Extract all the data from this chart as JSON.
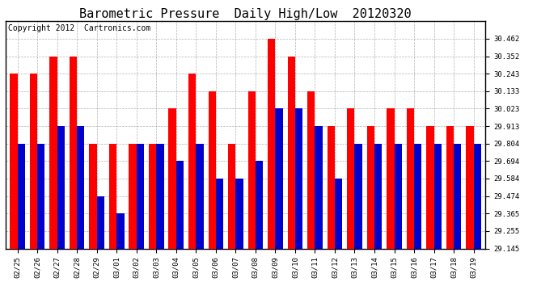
{
  "title": "Barometric Pressure  Daily High/Low  20120320",
  "copyright": "Copyright 2012  Cartronics.com",
  "categories": [
    "02/25",
    "02/26",
    "02/27",
    "02/28",
    "02/29",
    "03/01",
    "03/02",
    "03/03",
    "03/04",
    "03/05",
    "03/06",
    "03/07",
    "03/08",
    "03/09",
    "03/10",
    "03/11",
    "03/12",
    "03/13",
    "03/14",
    "03/15",
    "03/16",
    "03/17",
    "03/18",
    "03/19"
  ],
  "highs": [
    30.243,
    30.243,
    30.352,
    30.352,
    29.804,
    29.804,
    29.804,
    29.804,
    30.023,
    30.243,
    30.133,
    29.804,
    30.133,
    30.462,
    30.352,
    30.133,
    29.913,
    30.023,
    29.913,
    30.023,
    30.023,
    29.913,
    29.913,
    29.913
  ],
  "lows": [
    29.804,
    29.804,
    29.913,
    29.913,
    29.474,
    29.365,
    29.804,
    29.804,
    29.694,
    29.804,
    29.584,
    29.584,
    29.694,
    30.023,
    30.023,
    29.913,
    29.584,
    29.804,
    29.804,
    29.804,
    29.804,
    29.804,
    29.804,
    29.804
  ],
  "high_color": "#ff0000",
  "low_color": "#0000cc",
  "background_color": "#ffffff",
  "plot_bg_color": "#ffffff",
  "ylim_min": 29.145,
  "ylim_max": 30.572,
  "yticks": [
    29.145,
    29.255,
    29.365,
    29.474,
    29.584,
    29.694,
    29.804,
    29.913,
    30.023,
    30.133,
    30.243,
    30.352,
    30.462
  ],
  "title_fontsize": 11,
  "copyright_fontsize": 7,
  "tick_fontsize": 6.5,
  "bar_width": 0.38
}
